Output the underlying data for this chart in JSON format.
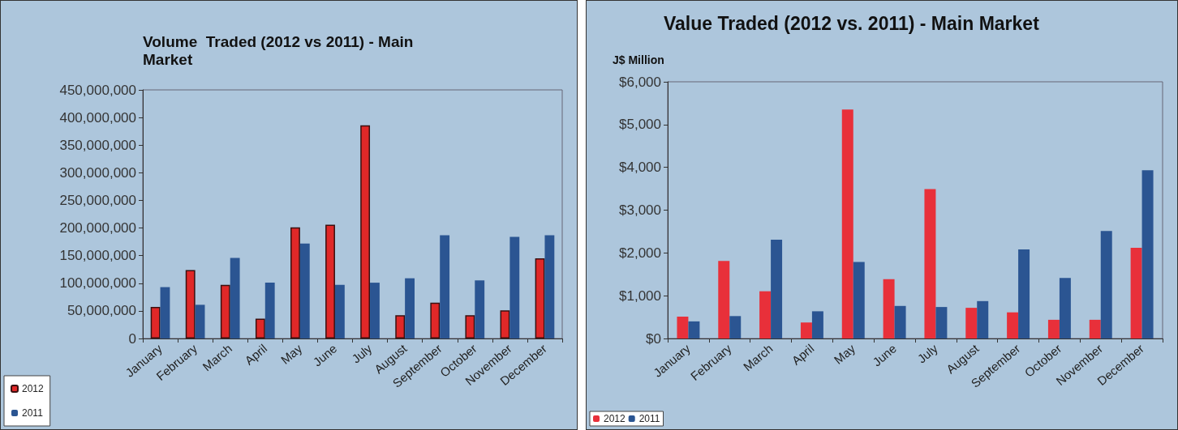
{
  "chart_data": [
    {
      "type": "bar",
      "title": "Volume  Traded (2012 vs 2011) - Main Market",
      "categories": [
        "January",
        "February",
        "March",
        "April",
        "May",
        "June",
        "July",
        "August",
        "September",
        "October",
        "November",
        "December"
      ],
      "series": [
        {
          "name": "2012",
          "color": "#e02828",
          "values": [
            57000000,
            124000000,
            97000000,
            36000000,
            201000000,
            206000000,
            386000000,
            42000000,
            65000000,
            42000000,
            51000000,
            145000000
          ]
        },
        {
          "name": "2011",
          "color": "#2b5592",
          "values": [
            93000000,
            61000000,
            146000000,
            101000000,
            172000000,
            97000000,
            101000000,
            109000000,
            187000000,
            105000000,
            184000000,
            187000000
          ]
        }
      ],
      "ylim": [
        0,
        450000000
      ],
      "yticks": [
        {
          "value": 0,
          "label": "0"
        },
        {
          "value": 50000000,
          "label": "50,000,000"
        },
        {
          "value": 100000000,
          "label": "100,000,000"
        },
        {
          "value": 150000000,
          "label": "150,000,000"
        },
        {
          "value": 200000000,
          "label": "200,000,000"
        },
        {
          "value": 250000000,
          "label": "250,000,000"
        },
        {
          "value": 300000000,
          "label": "300,000,000"
        },
        {
          "value": 350000000,
          "label": "350,000,000"
        },
        {
          "value": 400000000,
          "label": "400,000,000"
        },
        {
          "value": 450000000,
          "label": "450,000,000"
        }
      ],
      "legend": "bottom left"
    },
    {
      "type": "bar",
      "title": "Value Traded (2012 vs. 2011) - Main Market",
      "ylabel": "J$ Million",
      "categories": [
        "January",
        "February",
        "March",
        "April",
        "May",
        "June",
        "July",
        "August",
        "September",
        "October",
        "November",
        "December"
      ],
      "series": [
        {
          "name": "2012",
          "color": "#e8303a",
          "values": [
            511,
            1810,
            1104,
            374,
            5352,
            1385,
            3493,
            717,
            611,
            437,
            437,
            2121
          ]
        },
        {
          "name": "2011",
          "color": "#2b5592",
          "values": [
            400,
            524,
            2308,
            636,
            1790,
            761,
            736,
            874,
            2083,
            1416,
            2514,
            3930
          ]
        }
      ],
      "ylim": [
        0,
        6000
      ],
      "yticks": [
        {
          "value": 0,
          "label": "$0"
        },
        {
          "value": 1000,
          "label": "$1,000"
        },
        {
          "value": 2000,
          "label": "$2,000"
        },
        {
          "value": 3000,
          "label": "$3,000"
        },
        {
          "value": 4000,
          "label": "$4,000"
        },
        {
          "value": 5000,
          "label": "$5,000"
        },
        {
          "value": 6000,
          "label": "$6,000"
        }
      ],
      "legend": "bottom left"
    }
  ]
}
